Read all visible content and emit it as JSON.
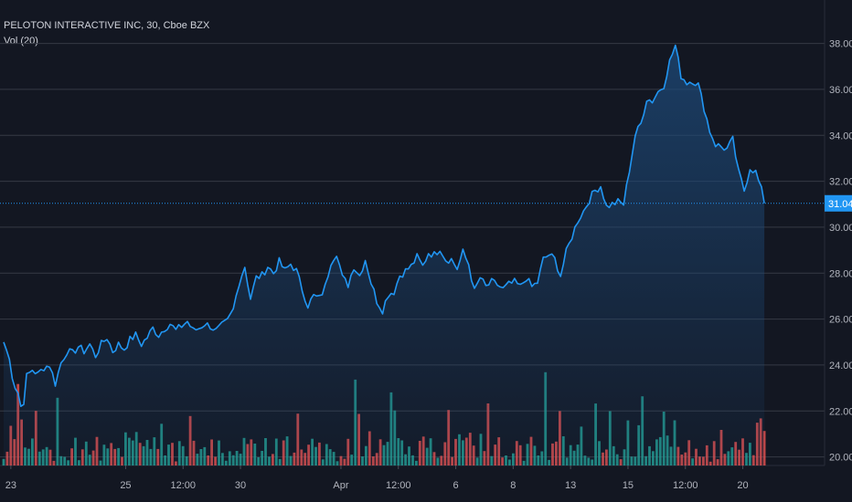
{
  "header": {
    "title": "PELOTON INTERACTIVE INC, 30, Cboe BZX",
    "indicator": "Vol (20)"
  },
  "colors": {
    "background": "#131722",
    "grid": "#363a45",
    "line": "#2196f3",
    "area_top": "#1d4a7a",
    "vol_up": "#26a69a",
    "vol_down": "#ef5350",
    "last_price": "#2196f3"
  },
  "chart_data": {
    "type": "area",
    "ylim": [
      19,
      39
    ],
    "y_ticks": [
      "20.00",
      "22.00",
      "24.00",
      "26.00",
      "28.00",
      "30.00",
      "32.00",
      "34.00",
      "36.00",
      "38.00"
    ],
    "y_tick_values": [
      20,
      22,
      24,
      26,
      28,
      30,
      32,
      34,
      36,
      38
    ],
    "x_tick_labels": [
      "23",
      "25",
      "12:00",
      "30",
      "Apr",
      "12:00",
      "6",
      "8",
      "13",
      "15",
      "12:00",
      "20"
    ],
    "x_tick_index": [
      0.5,
      8.5,
      12.5,
      16.5,
      23.5,
      27.5,
      31.5,
      35.5,
      39.5,
      43.5,
      47.5,
      51.5
    ],
    "last_price_label": "31.04",
    "last_price": 31.04,
    "bars_per_session": 14,
    "sessions": 55,
    "close_anchors": [
      [
        0,
        25.0
      ],
      [
        0.35,
        24.4
      ],
      [
        0.7,
        23.2
      ],
      [
        1,
        22.8
      ],
      [
        1.3,
        21.9
      ],
      [
        1.6,
        23.5
      ],
      [
        2,
        23.8
      ],
      [
        2.4,
        23.6
      ],
      [
        2.8,
        23.9
      ],
      [
        3.2,
        24.0
      ],
      [
        3.6,
        23.2
      ],
      [
        4,
        24.1
      ],
      [
        4.4,
        24.6
      ],
      [
        4.8,
        24.5
      ],
      [
        5.2,
        24.8
      ],
      [
        5.6,
        24.6
      ],
      [
        6,
        24.9
      ],
      [
        6.4,
        24.4
      ],
      [
        6.8,
        24.9
      ],
      [
        7.2,
        25.2
      ],
      [
        7.6,
        24.6
      ],
      [
        8,
        24.9
      ],
      [
        8.4,
        24.7
      ],
      [
        8.8,
        25.1
      ],
      [
        9.2,
        25.3
      ],
      [
        9.6,
        24.9
      ],
      [
        10,
        25.2
      ],
      [
        10.4,
        25.6
      ],
      [
        10.8,
        25.3
      ],
      [
        11.2,
        25.6
      ],
      [
        11.6,
        25.8
      ],
      [
        12,
        25.5
      ],
      [
        12.4,
        25.7
      ],
      [
        12.8,
        25.9
      ],
      [
        13.2,
        25.5
      ],
      [
        13.6,
        25.6
      ],
      [
        14,
        25.8
      ],
      [
        14.4,
        25.7
      ],
      [
        14.8,
        25.5
      ],
      [
        15.2,
        25.7
      ],
      [
        15.6,
        25.9
      ],
      [
        16,
        26.4
      ],
      [
        16.4,
        27.6
      ],
      [
        16.8,
        28.3
      ],
      [
        17.2,
        26.9
      ],
      [
        17.6,
        27.8
      ],
      [
        18,
        27.9
      ],
      [
        18.4,
        28.3
      ],
      [
        18.8,
        28.0
      ],
      [
        19.2,
        28.5
      ],
      [
        19.6,
        28.1
      ],
      [
        20,
        28.4
      ],
      [
        20.4,
        28.1
      ],
      [
        20.8,
        27.3
      ],
      [
        21.2,
        26.6
      ],
      [
        21.6,
        27.0
      ],
      [
        22,
        26.9
      ],
      [
        22.4,
        27.4
      ],
      [
        22.8,
        28.5
      ],
      [
        23.2,
        28.9
      ],
      [
        23.6,
        27.8
      ],
      [
        24,
        27.5
      ],
      [
        24.4,
        28.3
      ],
      [
        24.8,
        27.9
      ],
      [
        25.2,
        28.6
      ],
      [
        25.6,
        27.6
      ],
      [
        26,
        26.8
      ],
      [
        26.4,
        26.4
      ],
      [
        26.8,
        27.1
      ],
      [
        27.2,
        27.2
      ],
      [
        27.6,
        27.9
      ],
      [
        28,
        28.1
      ],
      [
        28.4,
        28.3
      ],
      [
        28.8,
        28.7
      ],
      [
        29.2,
        28.3
      ],
      [
        29.6,
        28.9
      ],
      [
        30,
        28.8
      ],
      [
        30.4,
        29.1
      ],
      [
        30.8,
        28.6
      ],
      [
        31.2,
        28.6
      ],
      [
        31.6,
        28.2
      ],
      [
        32,
        28.9
      ],
      [
        32.4,
        28.4
      ],
      [
        32.8,
        27.2
      ],
      [
        33.2,
        27.8
      ],
      [
        33.6,
        27.4
      ],
      [
        34,
        27.6
      ],
      [
        34.4,
        27.5
      ],
      [
        34.8,
        27.3
      ],
      [
        35.2,
        27.5
      ],
      [
        35.6,
        27.6
      ],
      [
        36,
        27.4
      ],
      [
        36.4,
        27.8
      ],
      [
        36.8,
        27.4
      ],
      [
        37.2,
        27.6
      ],
      [
        37.6,
        28.6
      ],
      [
        38,
        28.8
      ],
      [
        38.4,
        28.6
      ],
      [
        38.8,
        27.9
      ],
      [
        39.2,
        28.9
      ],
      [
        39.6,
        29.6
      ],
      [
        40,
        30.3
      ],
      [
        40.4,
        30.7
      ],
      [
        40.8,
        31.2
      ],
      [
        41.2,
        31.6
      ],
      [
        41.6,
        31.8
      ],
      [
        42,
        30.9
      ],
      [
        42.4,
        31.0
      ],
      [
        42.8,
        31.1
      ],
      [
        43.2,
        31.0
      ],
      [
        43.6,
        32.5
      ],
      [
        44,
        34.0
      ],
      [
        44.4,
        34.5
      ],
      [
        44.8,
        35.6
      ],
      [
        45.2,
        35.5
      ],
      [
        45.6,
        35.9
      ],
      [
        46,
        36.2
      ],
      [
        46.4,
        37.2
      ],
      [
        46.8,
        37.9
      ],
      [
        47.2,
        36.6
      ],
      [
        47.6,
        36.3
      ],
      [
        48,
        36.4
      ],
      [
        48.4,
        36.2
      ],
      [
        48.8,
        35.2
      ],
      [
        49.2,
        34.2
      ],
      [
        49.6,
        33.6
      ],
      [
        50,
        33.5
      ],
      [
        50.4,
        33.4
      ],
      [
        50.8,
        33.8
      ],
      [
        51.2,
        32.4
      ],
      [
        51.6,
        31.6
      ],
      [
        52,
        32.6
      ],
      [
        52.4,
        32.4
      ],
      [
        52.8,
        31.6
      ],
      [
        53,
        31.04
      ]
    ]
  }
}
